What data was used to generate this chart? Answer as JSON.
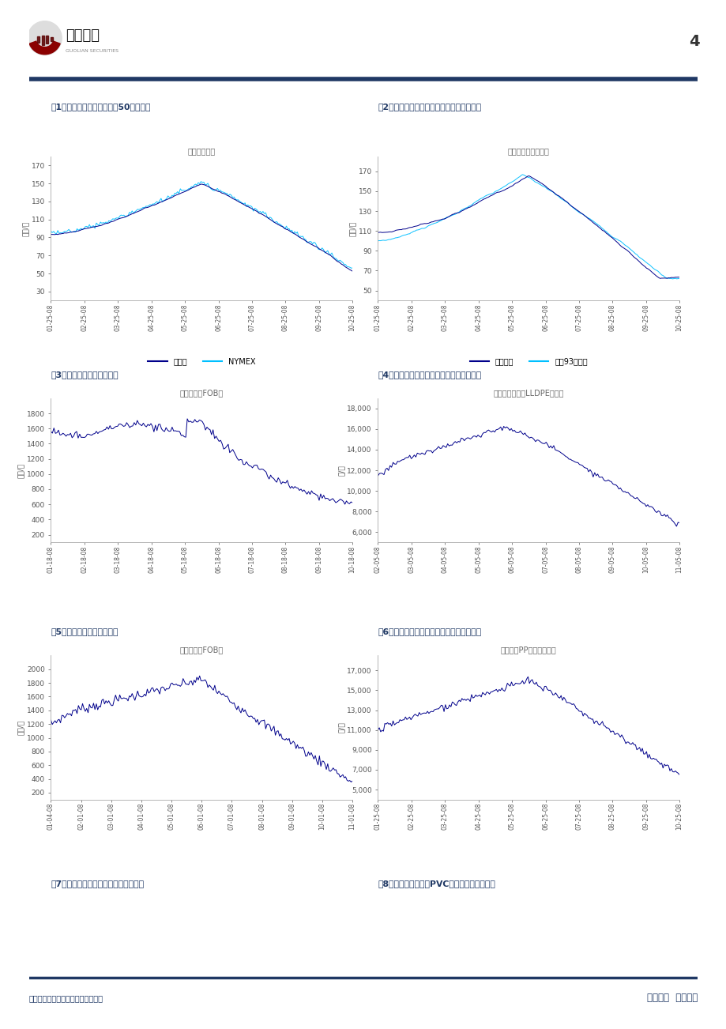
{
  "page_title": "4",
  "company_name": "国联证券",
  "company_sub": "GUOLIAN SECURITIES",
  "footer_left": "请务必阅读正文之后的免责条款部分",
  "footer_right": "发现价值  实现价值",
  "fig1_title": "图1：国际原油价格本周跨硣50美元大关",
  "fig1_chart_title": "国际原油价格",
  "fig1_ylabel": "美元/桶",
  "fig1_yticks": [
    30,
    50,
    70,
    90,
    110,
    130,
    150,
    170
  ],
  "fig1_ylim": [
    20,
    180
  ],
  "fig1_xticks": [
    "01-25-08",
    "02-25-08",
    "03-25-08",
    "04-25-08",
    "05-25-08",
    "06-25-08",
    "07-25-08",
    "08-25-08",
    "09-25-08",
    "10-25-08"
  ],
  "fig1_legend": [
    "布伦特",
    "NYMEX"
  ],
  "fig1_color1": "#00008B",
  "fig1_color2": "#00BFFF",
  "fig2_title": "图2：国际柴油、汽油本周仍然在下跌趋势中",
  "fig2_chart_title": "国际柴油、汽油价格",
  "fig2_ylabel": "美元/桶",
  "fig2_yticks": [
    50,
    70,
    90,
    110,
    130,
    150,
    170
  ],
  "fig2_ylim": [
    40,
    185
  ],
  "fig2_xticks": [
    "01-25-08",
    "02-25-08",
    "03-25-08",
    "04-25-08",
    "05-25-08",
    "06-25-08",
    "07-25-08",
    "08-25-08",
    "09-25-08",
    "10-25-08"
  ],
  "fig2_legend": [
    "纽约柴油",
    "纽祩93号汽油"
  ],
  "fig2_color1": "#00008B",
  "fig2_color2": "#00BFFF",
  "fig3_title": "图3：国际乙烯价格开始企稳",
  "fig3_chart_title": "乙烯（韩国FOB）",
  "fig3_ylabel": "美元/吨",
  "fig3_yticks": [
    200,
    400,
    600,
    800,
    1000,
    1200,
    1400,
    1600,
    1800
  ],
  "fig3_ylim": [
    100,
    2000
  ],
  "fig3_xticks": [
    "01-18-08",
    "02-18-08",
    "03-18-08",
    "04-18-08",
    "05-18-08",
    "06-18-08",
    "07-18-08",
    "08-18-08",
    "09-18-08",
    "10-18-08"
  ],
  "fig3_color": "#00008B",
  "fig4_title": "图4：本周长三角线性聚乙烯上涨后继续回落",
  "fig4_chart_title": "长三角聚乙烯（LLDPE）价格",
  "fig4_ylabel": "元/吨",
  "fig4_yticks": [
    6000,
    8000,
    10000,
    12000,
    14000,
    16000,
    18000
  ],
  "fig4_ylim": [
    5000,
    19000
  ],
  "fig4_xticks": [
    "02-05-08",
    "03-05-08",
    "04-05-08",
    "05-05-08",
    "06-05-08",
    "07-05-08",
    "08-05-08",
    "09-05-08",
    "10-05-08",
    "11-05-08"
  ],
  "fig4_color": "#00008B",
  "fig5_title": "图5：国际丙烯价格继续反弹",
  "fig5_chart_title": "丙烯（韩国FOB）",
  "fig5_ylabel": "美元/吨",
  "fig5_yticks": [
    200,
    400,
    600,
    800,
    1000,
    1200,
    1400,
    1600,
    1800,
    2000
  ],
  "fig5_ylim": [
    100,
    2200
  ],
  "fig5_xticks": [
    "01-04-08",
    "02-01-08",
    "03-01-08",
    "04-01-08",
    "05-01-08",
    "06-01-08",
    "07-01-08",
    "08-01-08",
    "09-01-08",
    "10-01-08",
    "11-01-08"
  ],
  "fig5_color": "#00008B",
  "fig6_title": "图6：本周长三角吹塑聚丙烯上涨后继续回落",
  "fig6_chart_title": "聚丙烯（PP）长三角价格",
  "fig6_ylabel": "元/吨",
  "fig6_yticks": [
    5000,
    7000,
    9000,
    11000,
    13000,
    15000,
    17000
  ],
  "fig6_ylim": [
    4000,
    18500
  ],
  "fig6_xticks": [
    "01-25-08",
    "02-25-08",
    "03-25-08",
    "04-25-08",
    "05-25-08",
    "06-25-08",
    "07-25-08",
    "08-25-08",
    "09-25-08",
    "10-25-08"
  ],
  "fig6_color": "#00008B",
  "fig7_title": "图7：本周长三角市场电石价格保持稳定",
  "fig8_title": "图8：本周长三角市场PVC价格反弹后继续下跌",
  "header_line_color": "#1F3864",
  "title_color": "#1F3864",
  "chart_title_color": "#666666",
  "axis_color": "#888888",
  "tick_color": "#555555",
  "bg_color": "#FFFFFF"
}
